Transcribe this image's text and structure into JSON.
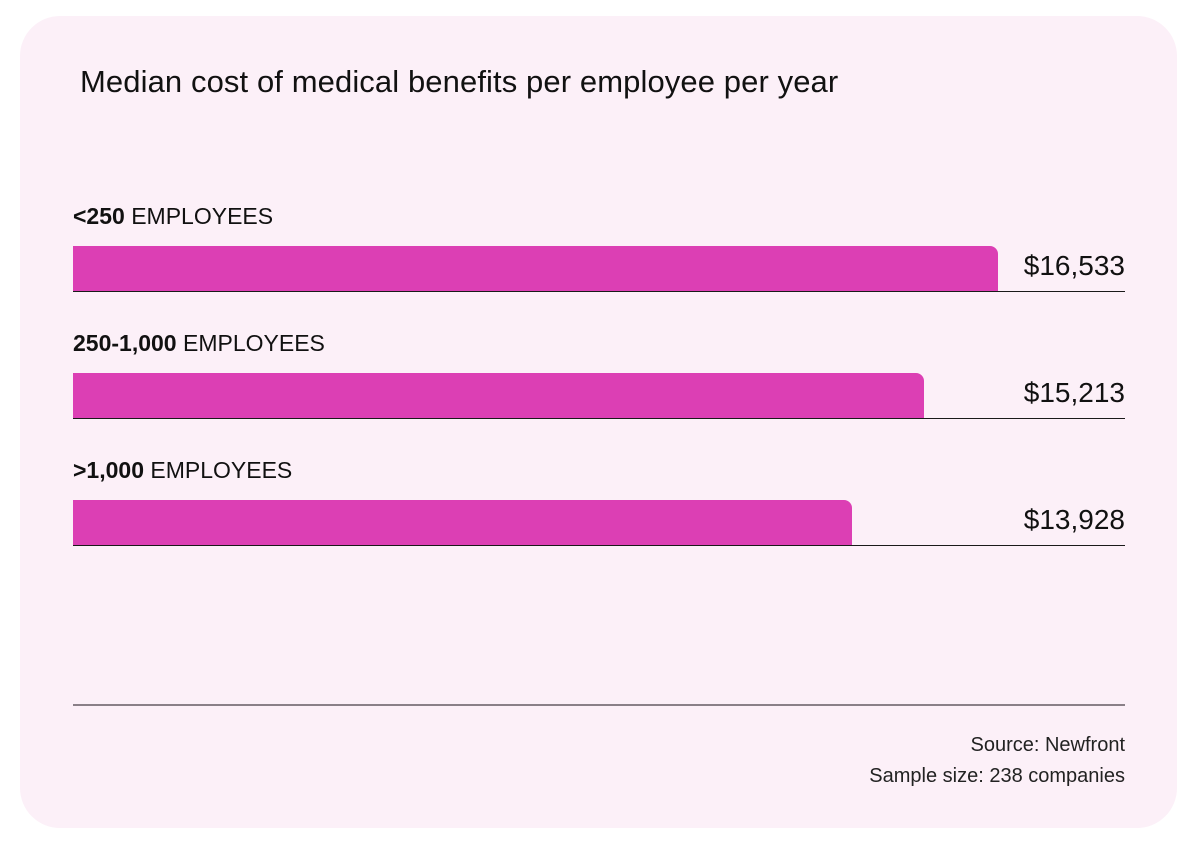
{
  "chart_data": {
    "type": "bar",
    "orientation": "horizontal",
    "title": "Median cost of medical benefits per employee per year",
    "categories": [
      {
        "bold": "<250",
        "rest": " EMPLOYEES"
      },
      {
        "bold": "250-1,000",
        "rest": " EMPLOYEES"
      },
      {
        "bold": ">1,000",
        "rest": " EMPLOYEES"
      }
    ],
    "values": [
      16533,
      15213,
      13928
    ],
    "value_labels": [
      "$16,533",
      "$15,213",
      "$13,928"
    ],
    "xlim": [
      0,
      18800
    ],
    "bar_color": "#dc3fb4",
    "grid": false,
    "legend": "none"
  },
  "footer": {
    "source": "Source: Newfront",
    "sample": "Sample size: 238 companies"
  },
  "colors": {
    "background": "#fcf0f8",
    "accent": "#dc3fb4"
  }
}
